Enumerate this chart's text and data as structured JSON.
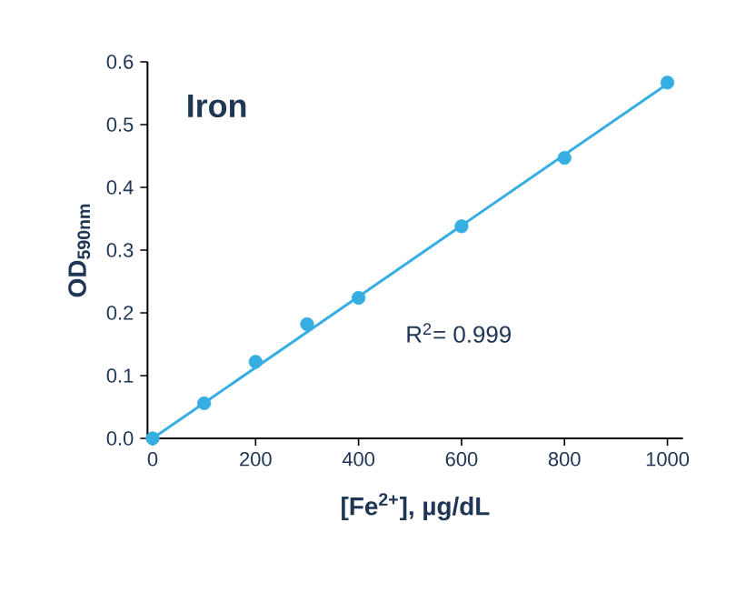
{
  "chart_data": {
    "type": "scatter",
    "title": "Iron",
    "xlabel": "[Fe$^{2+}$], µg/dL",
    "ylabel": "OD$_{590nm}$",
    "annotations": [
      "R$^{2}$= 0.999"
    ],
    "x": [
      0,
      100,
      200,
      300,
      400,
      600,
      800,
      1000
    ],
    "series": [
      {
        "color": "#36aee2",
        "marker": "circle",
        "values": [
          0,
          0.056,
          0.122,
          0.182,
          0.224,
          0.338,
          0.447,
          0.567
        ]
      },
      {
        "type": "line",
        "color": "#36aee2",
        "marker": "none",
        "line_style": "solid",
        "x": [
          0,
          1000
        ],
        "values": [
          0,
          0.565
        ]
      }
    ],
    "xlim": [
      -10,
      1030
    ],
    "ylim": [
      0,
      0.6
    ],
    "xticks": [
      0,
      200,
      400,
      600,
      800,
      1000
    ],
    "yticks": [
      {
        "value": 0,
        "label": "0.0"
      },
      0.1,
      0.2,
      0.3,
      0.4,
      0.5,
      0.6
    ],
    "grid": false
  }
}
